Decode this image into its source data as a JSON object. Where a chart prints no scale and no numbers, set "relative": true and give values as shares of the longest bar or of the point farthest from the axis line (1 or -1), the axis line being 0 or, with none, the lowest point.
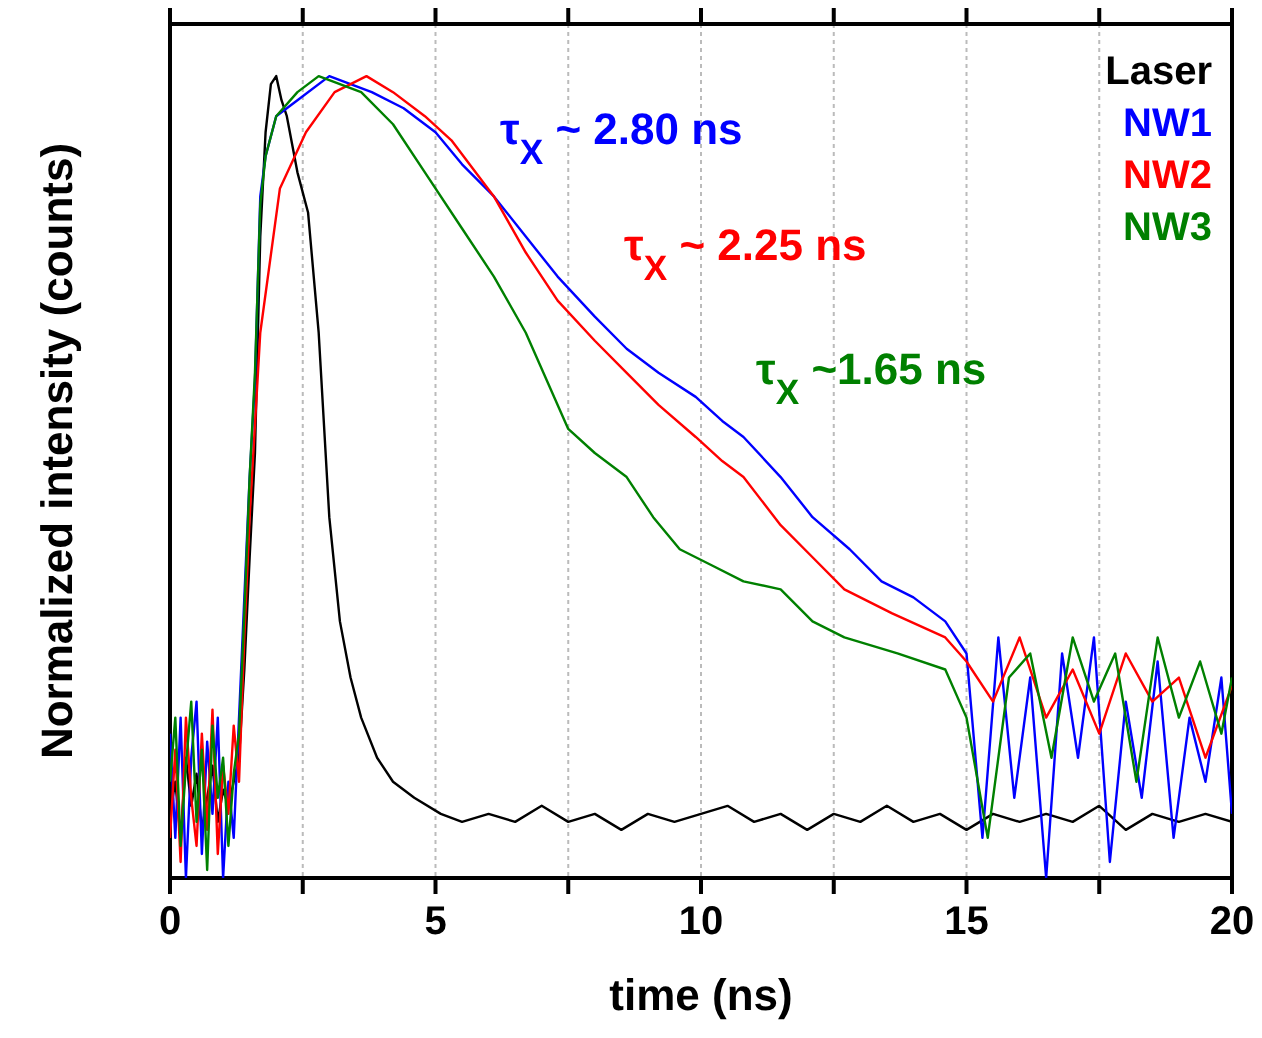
{
  "chart_data": {
    "type": "line",
    "relative": true,
    "xlabel": "time (ns)",
    "ylabel": "Normalized intensity (counts)",
    "xlim": [
      0,
      20
    ],
    "xticks": [
      0,
      {
        "value": 2.5,
        "label": null
      },
      5,
      {
        "value": 7.5,
        "label": null
      },
      10,
      {
        "value": 12.5,
        "label": null
      },
      15,
      {
        "value": 17.5,
        "label": null
      },
      20
    ],
    "grid": "x",
    "legend": "top right",
    "series": [
      {
        "name": "Laser",
        "color": "#000000",
        "x": [
          0,
          0.1,
          0.2,
          0.3,
          0.4,
          0.5,
          0.6,
          0.7,
          0.8,
          0.9,
          1.0,
          1.1,
          1.2,
          1.3,
          1.4,
          1.5,
          1.6,
          1.7,
          1.8,
          1.9,
          2.0,
          2.1,
          2.2,
          2.4,
          2.6,
          2.8,
          3.0,
          3.2,
          3.4,
          3.6,
          3.9,
          4.2,
          4.6,
          5.1,
          5.5,
          6,
          6.5,
          7,
          7.5,
          8,
          8.5,
          9,
          9.5,
          10,
          10.5,
          11,
          11.5,
          12,
          12.5,
          13,
          13.5,
          14,
          14.5,
          15,
          15.5,
          16,
          16.5,
          17,
          17.5,
          18,
          18.5,
          19,
          19.5,
          20
        ],
        "values": [
          0.08,
          0.12,
          0.05,
          0.15,
          0.09,
          0.13,
          0.06,
          0.1,
          0.14,
          0.07,
          0.11,
          0.09,
          0.12,
          0.15,
          0.26,
          0.4,
          0.53,
          0.8,
          0.93,
          0.99,
          1,
          0.97,
          0.95,
          0.88,
          0.83,
          0.68,
          0.45,
          0.32,
          0.25,
          0.2,
          0.15,
          0.12,
          0.1,
          0.08,
          0.07,
          0.08,
          0.07,
          0.09,
          0.07,
          0.08,
          0.06,
          0.08,
          0.07,
          0.08,
          0.09,
          0.07,
          0.08,
          0.06,
          0.08,
          0.07,
          0.09,
          0.07,
          0.08,
          0.06,
          0.08,
          0.07,
          0.08,
          0.07,
          0.09,
          0.06,
          0.08,
          0.07,
          0.08,
          0.07
        ]
      },
      {
        "name": "NW1",
        "color": "#0000ff",
        "x": [
          0,
          0.1,
          0.2,
          0.3,
          0.4,
          0.5,
          0.6,
          0.7,
          0.8,
          0.9,
          1.0,
          1.1,
          1.2,
          1.3,
          1.4,
          1.5,
          1.6,
          1.7,
          1.8,
          2.0,
          2.4,
          3.0,
          3.4,
          3.8,
          4.4,
          5.0,
          5.5,
          6.1,
          6.7,
          7.3,
          8.0,
          8.6,
          9.2,
          9.9,
          10.4,
          10.8,
          11.5,
          12.1,
          12.8,
          13.4,
          14.0,
          14.6,
          15,
          15.3,
          15.6,
          15.9,
          16.2,
          16.5,
          16.8,
          17.1,
          17.4,
          17.7,
          18,
          18.3,
          18.6,
          18.9,
          19.2,
          19.5,
          19.8,
          20
        ],
        "values": [
          0.18,
          0.05,
          0.2,
          0,
          0.15,
          0.22,
          0.03,
          0.17,
          0.08,
          0.2,
          0,
          0.12,
          0.05,
          0.2,
          0.35,
          0.5,
          0.62,
          0.85,
          0.9,
          0.95,
          0.97,
          1,
          0.99,
          0.98,
          0.96,
          0.93,
          0.89,
          0.85,
          0.8,
          0.75,
          0.7,
          0.66,
          0.63,
          0.6,
          0.57,
          0.55,
          0.5,
          0.45,
          0.41,
          0.37,
          0.35,
          0.32,
          0.28,
          0.05,
          0.3,
          0.1,
          0.25,
          0,
          0.28,
          0.15,
          0.3,
          0.02,
          0.22,
          0.1,
          0.27,
          0.05,
          0.2,
          0.12,
          0.25,
          0.08
        ]
      },
      {
        "name": "NW2",
        "color": "#ff0000",
        "x": [
          0,
          0.1,
          0.2,
          0.3,
          0.4,
          0.5,
          0.6,
          0.7,
          0.8,
          0.9,
          1.0,
          1.1,
          1.2,
          1.3,
          1.4,
          1.5,
          1.7,
          2.07,
          2.56,
          3.1,
          3.7,
          4.2,
          4.8,
          5.3,
          6.1,
          6.7,
          7.3,
          8.0,
          8.6,
          9.2,
          9.9,
          10.4,
          10.8,
          11.5,
          12.1,
          12.7,
          13.6,
          14.6,
          15,
          15.5,
          16,
          16.5,
          17,
          17.5,
          18,
          18.5,
          19,
          19.5,
          20
        ],
        "values": [
          0.05,
          0.16,
          0.02,
          0.2,
          0.1,
          0.04,
          0.18,
          0.06,
          0.21,
          0.03,
          0.14,
          0.08,
          0.19,
          0.12,
          0.3,
          0.45,
          0.68,
          0.86,
          0.93,
          0.98,
          1,
          0.98,
          0.95,
          0.92,
          0.85,
          0.78,
          0.72,
          0.67,
          0.63,
          0.59,
          0.55,
          0.52,
          0.5,
          0.44,
          0.4,
          0.36,
          0.33,
          0.3,
          0.27,
          0.22,
          0.3,
          0.2,
          0.26,
          0.18,
          0.28,
          0.22,
          0.25,
          0.15,
          0.24
        ]
      },
      {
        "name": "NW3",
        "color": "#008000",
        "x": [
          0,
          0.1,
          0.2,
          0.3,
          0.4,
          0.5,
          0.6,
          0.7,
          0.8,
          0.9,
          1.0,
          1.1,
          1.2,
          1.3,
          1.4,
          1.5,
          1.6,
          1.7,
          1.8,
          2.0,
          2.4,
          2.8,
          3.6,
          4.2,
          4.8,
          5.5,
          6.1,
          6.7,
          7.5,
          8.0,
          8.6,
          9.1,
          9.6,
          10.2,
          10.8,
          11.5,
          12.1,
          12.7,
          13.7,
          14.6,
          15,
          15.4,
          15.8,
          16.2,
          16.6,
          17,
          17.4,
          17.8,
          18.2,
          18.6,
          19,
          19.4,
          19.8,
          20
        ],
        "values": [
          0.12,
          0.2,
          0.04,
          0.14,
          0.22,
          0.07,
          0.16,
          0.01,
          0.19,
          0.1,
          0.15,
          0.04,
          0.13,
          0.18,
          0.33,
          0.5,
          0.63,
          0.84,
          0.9,
          0.95,
          0.98,
          1,
          0.98,
          0.94,
          0.88,
          0.81,
          0.75,
          0.68,
          0.56,
          0.53,
          0.5,
          0.45,
          0.41,
          0.39,
          0.37,
          0.36,
          0.32,
          0.3,
          0.28,
          0.26,
          0.2,
          0.05,
          0.25,
          0.28,
          0.15,
          0.3,
          0.22,
          0.28,
          0.12,
          0.3,
          0.2,
          0.27,
          0.18,
          0.25
        ]
      }
    ],
    "annotations": [
      "τ$_{X}$ ~ 2.80 ns",
      "τ$_{X}$ ~ 2.25 ns",
      "τ$_{X}$ ~1.65 ns"
    ]
  }
}
